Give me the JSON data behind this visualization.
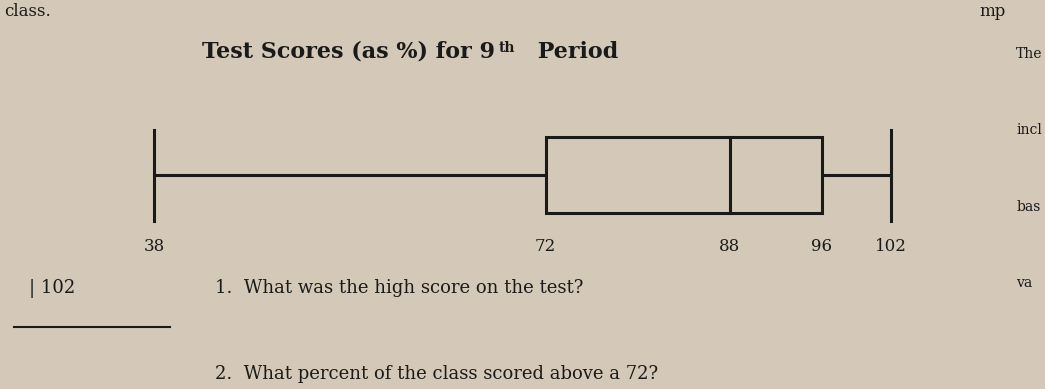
{
  "title_main": "Test Scores (as %) for 9",
  "title_super": "th",
  "title_suffix": " Period",
  "min": 38,
  "q1": 72,
  "median": 88,
  "q3": 96,
  "max": 102,
  "question1": "1.  What was the high score on the test?",
  "question2": "2.  What percent of the class scored above a 72?",
  "answer1": "| 102",
  "bg_color": "#d4c9b8",
  "box_color": "#1a1a1a",
  "text_color": "#1a1a1a",
  "xlim_left": 25,
  "xlim_right": 112
}
